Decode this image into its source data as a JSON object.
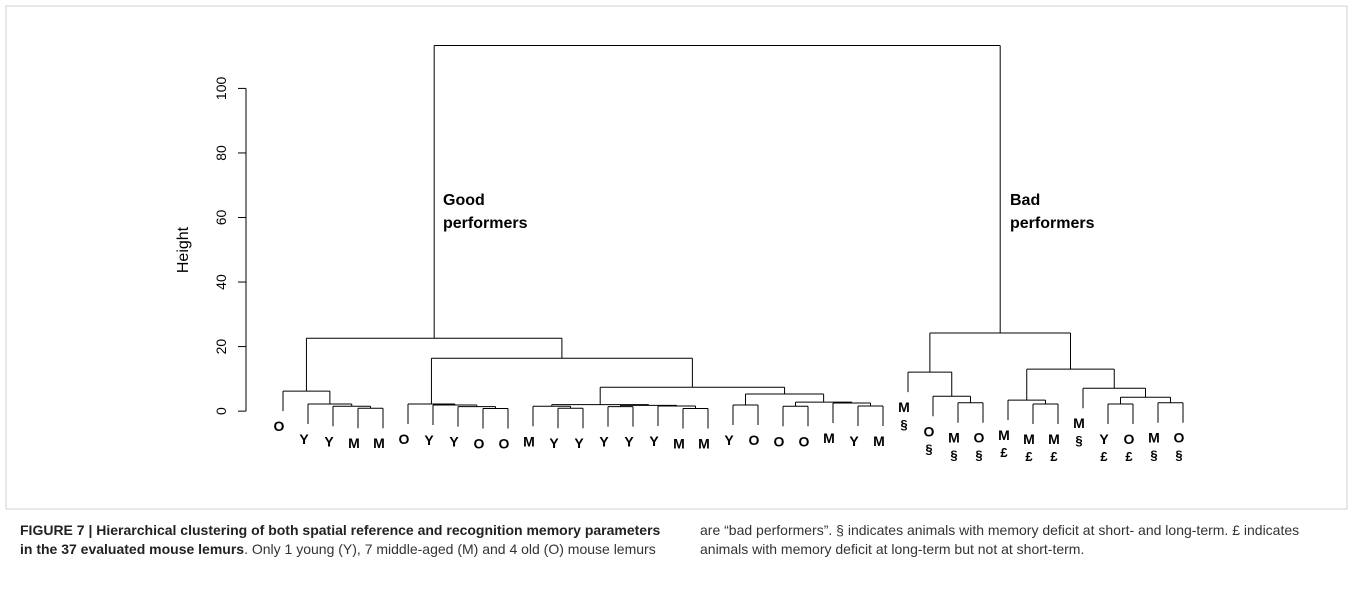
{
  "chart_data": {
    "type": "dendrogram",
    "ylabel": "Height",
    "ylim": [
      -4.3,
      115
    ],
    "yticks": [
      0,
      20,
      40,
      60,
      80,
      100
    ],
    "annotations": [
      {
        "lines": [
          "Good",
          "performers"
        ]
      },
      {
        "lines": [
          "Bad",
          "performers"
        ]
      }
    ],
    "tree": {
      "height": 113.3,
      "children": [
        {
          "height": 22.6,
          "children": [
            {
              "height": 6.2,
              "children": [
                {
                  "label": "O"
                },
                {
                  "height": 2.2,
                  "children": [
                    {
                      "label": "Y"
                    },
                    {
                      "height": 1.5,
                      "children": [
                        {
                          "label": "Y"
                        },
                        {
                          "height": 0.9,
                          "children": [
                            {
                              "label": "M"
                            },
                            {
                              "label": "M"
                            }
                          ]
                        }
                      ]
                    }
                  ]
                }
              ]
            },
            {
              "height": 16.4,
              "children": [
                {
                  "height": 2.2,
                  "children": [
                    {
                      "label": "O"
                    },
                    {
                      "height": 1.9,
                      "children": [
                        {
                          "label": "Y"
                        },
                        {
                          "height": 1.4,
                          "children": [
                            {
                              "label": "Y"
                            },
                            {
                              "height": 0.8,
                              "children": [
                                {
                                  "label": "O"
                                },
                                {
                                  "label": "O"
                                }
                              ]
                            }
                          ]
                        }
                      ]
                    }
                  ]
                },
                {
                  "height": 7.4,
                  "children": [
                    {
                      "height": 2.0,
                      "children": [
                        {
                          "height": 1.5,
                          "children": [
                            {
                              "label": "M"
                            },
                            {
                              "height": 0.9,
                              "children": [
                                {
                                  "label": "Y"
                                },
                                {
                                  "label": "Y"
                                }
                              ]
                            }
                          ]
                        },
                        {
                          "height": 1.8,
                          "children": [
                            {
                              "height": 1.4,
                              "children": [
                                {
                                  "label": "Y"
                                },
                                {
                                  "label": "Y"
                                }
                              ]
                            },
                            {
                              "height": 1.6,
                              "children": [
                                {
                                  "label": "Y"
                                },
                                {
                                  "height": 0.8,
                                  "children": [
                                    {
                                      "label": "M"
                                    },
                                    {
                                      "label": "M"
                                    }
                                  ]
                                }
                              ]
                            }
                          ]
                        }
                      ]
                    },
                    {
                      "height": 5.3,
                      "children": [
                        {
                          "height": 1.9,
                          "children": [
                            {
                              "label": "Y"
                            },
                            {
                              "label": "O"
                            }
                          ]
                        },
                        {
                          "height": 2.8,
                          "children": [
                            {
                              "height": 1.5,
                              "children": [
                                {
                                  "label": "O"
                                },
                                {
                                  "label": "O"
                                }
                              ]
                            },
                            {
                              "height": 2.5,
                              "children": [
                                {
                                  "label": "M"
                                },
                                {
                                  "height": 1.6,
                                  "children": [
                                    {
                                      "label": "Y"
                                    },
                                    {
                                      "label": "M"
                                    }
                                  ]
                                }
                              ]
                            }
                          ]
                        }
                      ]
                    }
                  ]
                }
              ]
            }
          ]
        },
        {
          "height": 24.2,
          "children": [
            {
              "height": 12.1,
              "children": [
                {
                  "label": "M",
                  "note": "§"
                },
                {
                  "height": 4.6,
                  "children": [
                    {
                      "label": "O",
                      "note": "§"
                    },
                    {
                      "height": 2.6,
                      "children": [
                        {
                          "label": "M",
                          "note": "§"
                        },
                        {
                          "label": "O",
                          "note": "§"
                        }
                      ]
                    }
                  ]
                }
              ]
            },
            {
              "height": 13.0,
              "children": [
                {
                  "height": 3.4,
                  "children": [
                    {
                      "label": "M",
                      "note": "£"
                    },
                    {
                      "height": 2.2,
                      "children": [
                        {
                          "label": "M",
                          "note": "£"
                        },
                        {
                          "label": "M",
                          "note": "£"
                        }
                      ]
                    }
                  ]
                },
                {
                  "height": 7.1,
                  "children": [
                    {
                      "label": "M",
                      "note": "§"
                    },
                    {
                      "height": 4.3,
                      "children": [
                        {
                          "height": 2.2,
                          "children": [
                            {
                              "label": "Y",
                              "note": "£"
                            },
                            {
                              "label": "O",
                              "note": "£"
                            }
                          ]
                        },
                        {
                          "height": 2.6,
                          "children": [
                            {
                              "label": "M",
                              "note": "§"
                            },
                            {
                              "label": "O",
                              "note": "§"
                            }
                          ]
                        }
                      ]
                    }
                  ]
                }
              ]
            }
          ]
        }
      ]
    }
  },
  "caption": {
    "title": "FIGURE 7 | Hierarchical clustering of both spatial reference and recognition memory parameters in the 37 evaluated mouse lemurs",
    "text": ". Only 1 young (Y), 7 middle-aged (M) and 4 old (O) mouse lemurs are “bad performers”. § indicates animals with memory deficit at short- and long-term. £ indicates animals with memory deficit at long-term but not at short-term."
  }
}
